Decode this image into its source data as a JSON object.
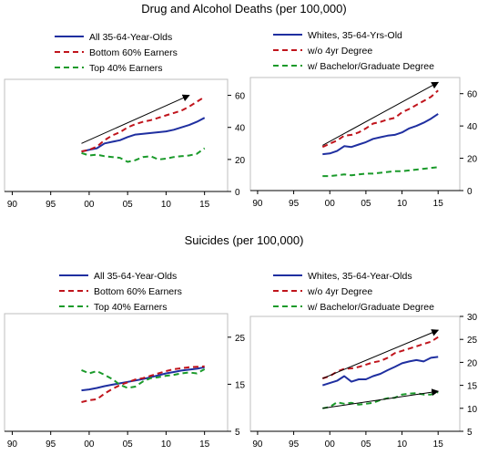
{
  "sections": [
    {
      "title": "Drug and Alcohol Deaths (per 100,000)"
    },
    {
      "title": "Suicides (per 100,000)"
    }
  ],
  "colors": {
    "blue": "#1f2fa0",
    "red": "#c0141c",
    "green": "#1a9a2a",
    "arrow": "#000000"
  },
  "chart_data": [
    {
      "type": "line",
      "x": [
        1999,
        2000,
        2001,
        2002,
        2003,
        2004,
        2005,
        2006,
        2007,
        2008,
        2009,
        2010,
        2011,
        2012,
        2013,
        2014,
        2015
      ],
      "xlim": [
        1989,
        2018
      ],
      "ylim": [
        0,
        70
      ],
      "yticks": [
        0,
        20,
        40,
        60
      ],
      "xticks": [
        1990,
        1995,
        2000,
        2005,
        2010,
        2015
      ],
      "xticklabels": [
        "90",
        "95",
        "00",
        "05",
        "10",
        "15"
      ],
      "yaxis_side": "right",
      "series": [
        {
          "name": "All 35-64-Year-Olds",
          "style": "solid",
          "color": "blue",
          "values": [
            25,
            26,
            27,
            30,
            31,
            32,
            34,
            35.5,
            36,
            36.5,
            37,
            37.5,
            38.5,
            40,
            41.5,
            43.5,
            46
          ]
        },
        {
          "name": "Bottom 60% Earners",
          "style": "dashed",
          "color": "red",
          "values": [
            25,
            26,
            28,
            32,
            35,
            37,
            40,
            42,
            43.5,
            44.5,
            46,
            47.5,
            49,
            50.5,
            53,
            56,
            59
          ]
        },
        {
          "name": "Top 40% Earners",
          "style": "dashed",
          "color": "green",
          "values": [
            24,
            22.5,
            23,
            22,
            21.5,
            21,
            18.5,
            19.5,
            21.5,
            22,
            20,
            20.5,
            21.5,
            22,
            22.5,
            23.5,
            27
          ]
        }
      ],
      "arrows": [
        {
          "from": [
            1999,
            30
          ],
          "to": [
            2013,
            60
          ]
        }
      ]
    },
    {
      "type": "line",
      "x": [
        1999,
        2000,
        2001,
        2002,
        2003,
        2004,
        2005,
        2006,
        2007,
        2008,
        2009,
        2010,
        2011,
        2012,
        2013,
        2014,
        2015
      ],
      "xlim": [
        1989,
        2018
      ],
      "ylim": [
        0,
        70
      ],
      "yticks": [
        0,
        20,
        40,
        60
      ],
      "xticks": [
        1990,
        1995,
        2000,
        2005,
        2010,
        2015
      ],
      "xticklabels": [
        "90",
        "95",
        "00",
        "05",
        "10",
        "15"
      ],
      "yaxis_side": "right",
      "series": [
        {
          "name": "Whites, 35-64-Yrs-Old",
          "style": "solid",
          "color": "blue",
          "values": [
            22.5,
            23,
            24.5,
            27.5,
            27,
            28.5,
            30,
            32,
            33,
            34,
            34.5,
            36,
            38.5,
            40,
            42,
            44.5,
            47.5
          ]
        },
        {
          "name": "w/o 4yr Degree",
          "style": "dashed",
          "color": "red",
          "values": [
            27,
            29,
            31,
            34,
            34.5,
            36,
            38.5,
            41.5,
            42.5,
            44,
            45,
            48.5,
            50.5,
            53,
            55.5,
            58,
            62
          ]
        },
        {
          "name": "w/ Bachelor/Graduate Degree",
          "style": "dashed",
          "color": "green",
          "values": [
            9,
            9,
            9.5,
            10,
            9.5,
            10,
            10.5,
            10.5,
            11,
            11.5,
            12,
            12,
            12.5,
            13,
            13.5,
            14,
            14.5
          ]
        }
      ],
      "arrows": [
        {
          "from": [
            1999,
            28
          ],
          "to": [
            2015,
            67
          ]
        }
      ]
    },
    {
      "type": "line",
      "x": [
        1999,
        2000,
        2001,
        2002,
        2003,
        2004,
        2005,
        2006,
        2007,
        2008,
        2009,
        2010,
        2011,
        2012,
        2013,
        2014,
        2015
      ],
      "xlim": [
        1989,
        2018
      ],
      "ylim": [
        5,
        30
      ],
      "yticks": [
        5,
        15,
        25
      ],
      "xticks": [
        1990,
        1995,
        2000,
        2005,
        2010,
        2015
      ],
      "xticklabels": [
        "90",
        "95",
        "00",
        "05",
        "10",
        "15"
      ],
      "yaxis_side": "right",
      "series": [
        {
          "name": "All 35-64-Year-Olds",
          "style": "solid",
          "color": "blue",
          "values": [
            13.7,
            13.9,
            14.2,
            14.6,
            14.9,
            15.2,
            15.5,
            15.8,
            16.1,
            16.5,
            16.9,
            17.3,
            17.6,
            17.9,
            18.1,
            18.3,
            18.6
          ]
        },
        {
          "name": "Bottom 60% Earners",
          "style": "dashed",
          "color": "red",
          "values": [
            11.2,
            11.6,
            11.8,
            13,
            14,
            14.8,
            15.4,
            16,
            16.3,
            16.8,
            17.3,
            17.8,
            18.2,
            18.4,
            18.6,
            18.7,
            18.8
          ]
        },
        {
          "name": "Top 40% Earners",
          "style": "dashed",
          "color": "green",
          "values": [
            18,
            17.3,
            17.8,
            17,
            16.1,
            14.9,
            14.2,
            14.5,
            15.6,
            16.3,
            16.5,
            16.8,
            17,
            17.3,
            17.5,
            17.3,
            18.2
          ]
        }
      ]
    },
    {
      "type": "line",
      "x": [
        1999,
        2000,
        2001,
        2002,
        2003,
        2004,
        2005,
        2006,
        2007,
        2008,
        2009,
        2010,
        2011,
        2012,
        2013,
        2014,
        2015
      ],
      "xlim": [
        1989,
        2018
      ],
      "ylim": [
        5,
        30
      ],
      "yticks": [
        5,
        10,
        15,
        20,
        25,
        30
      ],
      "xticks": [
        1990,
        1995,
        2000,
        2005,
        2010,
        2015
      ],
      "xticklabels": [
        "90",
        "95",
        "00",
        "05",
        "10",
        "15"
      ],
      "yaxis_side": "right",
      "series": [
        {
          "name": "Whites, 35-64-Year-Olds",
          "style": "solid",
          "color": "blue",
          "values": [
            15,
            15.5,
            16,
            17,
            15.8,
            16.3,
            16.3,
            17,
            17.5,
            18.3,
            19,
            19.8,
            20.2,
            20.5,
            20.2,
            21,
            21.2
          ]
        },
        {
          "name": "w/o 4yr Degree",
          "style": "dashed",
          "color": "red",
          "values": [
            16.5,
            17,
            18,
            18.6,
            18.7,
            19,
            19.5,
            20,
            20.3,
            21,
            22,
            22.5,
            23,
            23.5,
            24,
            24.5,
            25.5
          ]
        },
        {
          "name": "w/ Bachelor/Graduate Degree",
          "style": "dashed",
          "color": "green",
          "values": [
            10,
            10.3,
            11.3,
            11,
            11.2,
            10.8,
            11,
            11.2,
            11.8,
            12.2,
            12.3,
            13,
            13.2,
            13.3,
            13,
            13,
            13.5
          ]
        }
      ],
      "arrows": [
        {
          "from": [
            1999,
            16.5
          ],
          "to": [
            2015,
            27
          ]
        },
        {
          "from": [
            1999,
            10
          ],
          "to": [
            2015,
            13.7
          ]
        }
      ]
    }
  ]
}
